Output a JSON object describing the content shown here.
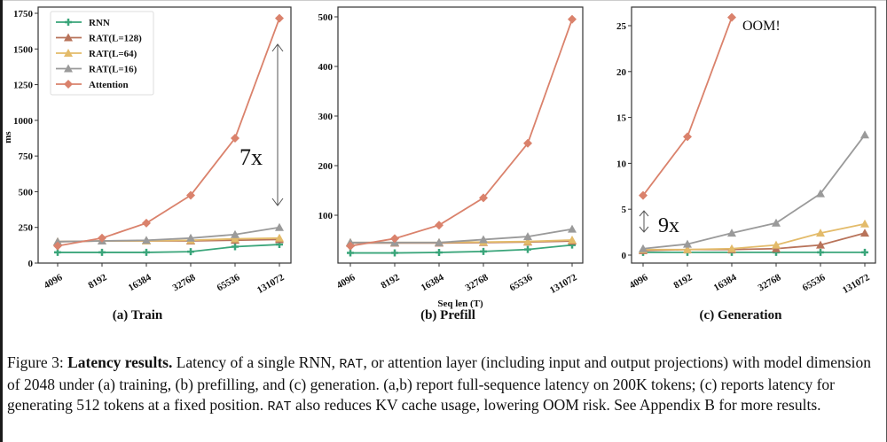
{
  "figure": {
    "caption_label": "Figure 3:",
    "caption_bold": "Latency results.",
    "caption_parts": [
      {
        "text": " Latency of a single RNN, ",
        "mono": false
      },
      {
        "text": "RAT",
        "mono": true
      },
      {
        "text": ", or attention layer (including input and output projections) with model dimension of 2048 under (a) training, (b) prefilling, and (c) generation.  (a,b) report full-sequence latency on 200K tokens; (c) reports latency for generating 512 tokens at a fixed position. ",
        "mono": false
      },
      {
        "text": "RAT",
        "mono": true
      },
      {
        "text": " also reduces KV cache usage, lowering OOM risk. See Appendix B for more results.",
        "mono": false
      }
    ]
  },
  "legend": {
    "placement": "top-left of panel (a)",
    "entries": [
      {
        "name": "RNN",
        "color": "#3aa57a",
        "marker": "plus"
      },
      {
        "name": "RAT(L=128)",
        "color": "#b8735a",
        "marker": "triangle"
      },
      {
        "name": "RAT(L=64)",
        "color": "#e3bb6a",
        "marker": "triangle"
      },
      {
        "name": "RAT(L=16)",
        "color": "#9a9a9a",
        "marker": "triangle"
      },
      {
        "name": "Attention",
        "color": "#da826c",
        "marker": "diamond"
      }
    ]
  },
  "chart_data": [
    {
      "type": "line",
      "title": "(a) Train",
      "xlabel": "",
      "ylabel": "ms",
      "categories": [
        "4096",
        "8192",
        "16384",
        "32768",
        "65536",
        "131072"
      ],
      "ylim": [
        0,
        1750
      ],
      "yticks": [
        0,
        250,
        500,
        750,
        1000,
        1250,
        1500,
        1750
      ],
      "grid": false,
      "series": [
        {
          "name": "RNN",
          "values": [
            75,
            75,
            75,
            80,
            115,
            130
          ]
        },
        {
          "name": "RAT(L=128)",
          "values": [
            150,
            155,
            155,
            155,
            160,
            165
          ]
        },
        {
          "name": "RAT(L=64)",
          "values": [
            150,
            155,
            155,
            160,
            170,
            175
          ]
        },
        {
          "name": "RAT(L=16)",
          "values": [
            150,
            155,
            160,
            175,
            200,
            250
          ]
        },
        {
          "name": "Attention",
          "values": [
            120,
            175,
            280,
            475,
            875,
            1715
          ]
        }
      ],
      "annotations": [
        {
          "text": "7x",
          "type": "double-arrow",
          "between": [
            "RAT(L=16)",
            "Attention"
          ],
          "at": "131072"
        }
      ]
    },
    {
      "type": "line",
      "title": "(b) Prefill",
      "xlabel": "Seq len (T)",
      "ylabel": "",
      "categories": [
        "4096",
        "8192",
        "16384",
        "32768",
        "65536",
        "131072"
      ],
      "ylim": [
        0,
        500
      ],
      "yticks": [
        100,
        200,
        300,
        400,
        500
      ],
      "grid": false,
      "series": [
        {
          "name": "RNN",
          "values": [
            24,
            24,
            25,
            27,
            31,
            40
          ]
        },
        {
          "name": "RAT(L=128)",
          "values": [
            44,
            44,
            44,
            45,
            46,
            48
          ]
        },
        {
          "name": "RAT(L=64)",
          "values": [
            45,
            45,
            45,
            46,
            47,
            50
          ]
        },
        {
          "name": "RAT(L=16)",
          "values": [
            45,
            45,
            45,
            51,
            57,
            72
          ]
        },
        {
          "name": "Attention",
          "values": [
            38,
            53,
            80,
            135,
            245,
            495
          ]
        }
      ],
      "annotations": []
    },
    {
      "type": "line",
      "title": "(c) Generation",
      "xlabel": "",
      "ylabel": "",
      "categories": [
        "4096",
        "8192",
        "16384",
        "32768",
        "65536",
        "131072"
      ],
      "ylim": [
        0,
        27
      ],
      "yticks": [
        0,
        5,
        10,
        15,
        20,
        25
      ],
      "grid": false,
      "series": [
        {
          "name": "RNN",
          "values": [
            0.3,
            0.3,
            0.3,
            0.3,
            0.3,
            0.3
          ]
        },
        {
          "name": "RAT(L=128)",
          "values": [
            0.5,
            0.6,
            0.6,
            0.7,
            1.1,
            2.4
          ]
        },
        {
          "name": "RAT(L=64)",
          "values": [
            0.6,
            0.6,
            0.7,
            1.1,
            2.4,
            3.4
          ]
        },
        {
          "name": "RAT(L=16)",
          "values": [
            0.7,
            1.2,
            2.4,
            3.5,
            6.7,
            13.1
          ]
        },
        {
          "name": "Attention",
          "values": [
            6.5,
            12.9,
            25.9,
            null,
            null,
            null
          ]
        }
      ],
      "annotations": [
        {
          "text": "OOM!",
          "type": "label",
          "near": "Attention at 16384"
        },
        {
          "text": "9x",
          "type": "double-arrow",
          "between": [
            "RAT(L=16)",
            "Attention"
          ],
          "at": "4096"
        }
      ]
    }
  ]
}
